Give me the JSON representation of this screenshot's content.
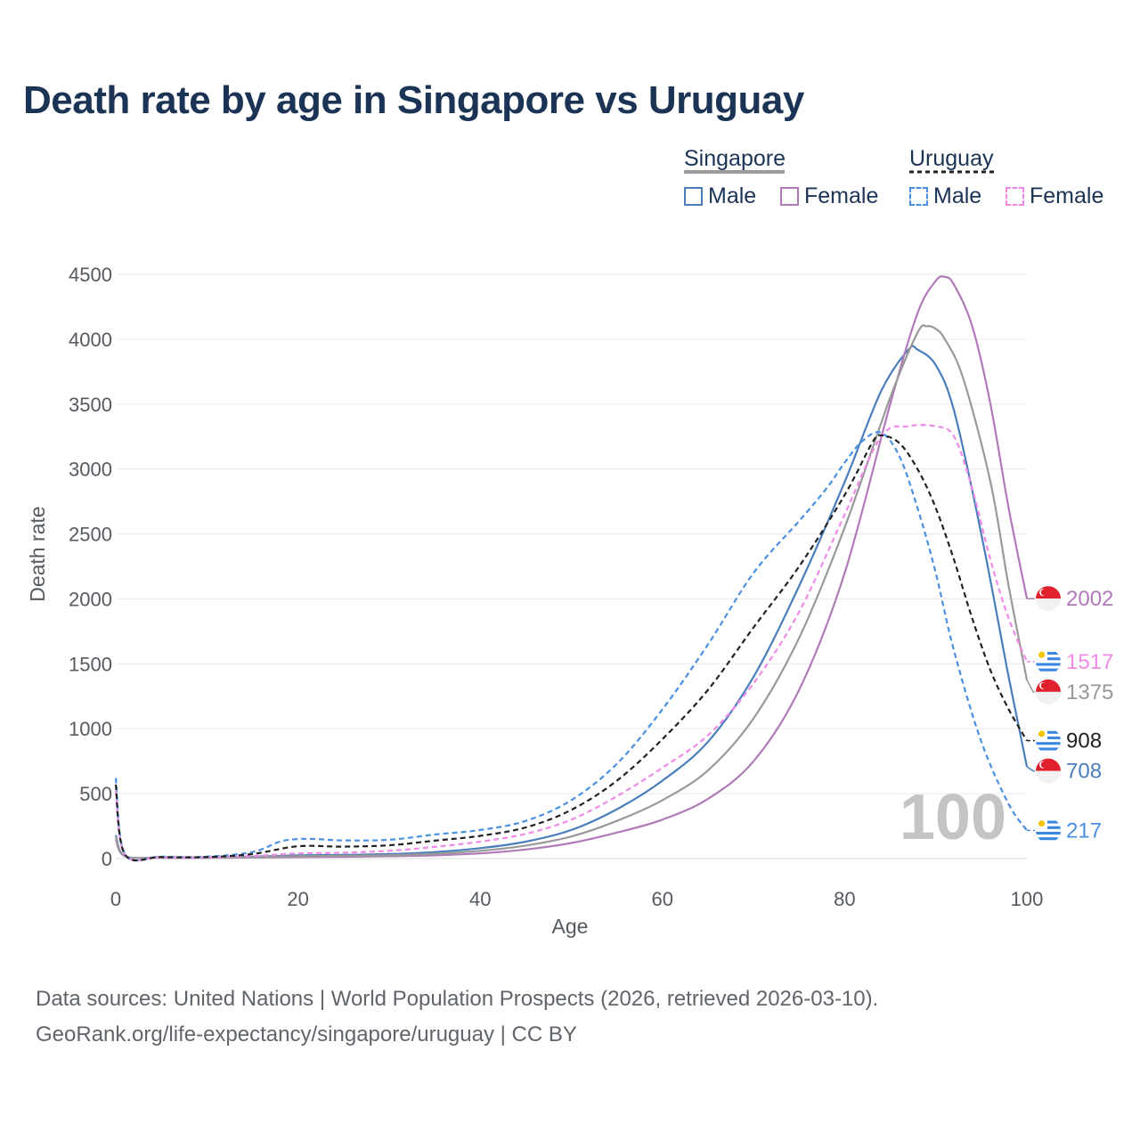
{
  "title": "Death rate by age in Singapore vs Uruguay",
  "legend": {
    "groups": [
      {
        "name": "Singapore",
        "line_color": "#999999",
        "dash": "solid",
        "items": [
          {
            "label": "Male",
            "color": "#4a7ebb"
          },
          {
            "label": "Female",
            "color": "#b07ab8"
          }
        ]
      },
      {
        "name": "Uruguay",
        "line_color": "#222222",
        "dash": "dashed",
        "items": [
          {
            "label": "Male",
            "color": "#4a90e2"
          },
          {
            "label": "Female",
            "color": "#f08ae8"
          }
        ]
      }
    ]
  },
  "watermark": "100",
  "source_line1": "Data sources: United Nations | World Population Prospects (2026, retrieved 2026-03-10).",
  "source_line2": "GeoRank.org/life-expectancy/singapore/uruguay | CC BY",
  "chart_data": {
    "type": "line",
    "title": "Death rate by age in Singapore vs Uruguay",
    "xlabel": "Age",
    "ylabel": "Death rate",
    "xlim": [
      0,
      100
    ],
    "ylim": [
      0,
      4500
    ],
    "xticks": [
      0,
      20,
      40,
      60,
      80,
      100
    ],
    "yticks": [
      0,
      500,
      1000,
      1500,
      2000,
      2500,
      3000,
      3500,
      4000,
      4500
    ],
    "grid": true,
    "series": [
      {
        "name": "Singapore Male",
        "country": "Singapore",
        "sex": "Male",
        "color": "#4a7ebb",
        "dash": "solid",
        "end_label": "708",
        "points": [
          [
            0,
            180
          ],
          [
            1,
            20
          ],
          [
            5,
            8
          ],
          [
            10,
            8
          ],
          [
            15,
            15
          ],
          [
            20,
            25
          ],
          [
            25,
            28
          ],
          [
            30,
            35
          ],
          [
            35,
            50
          ],
          [
            40,
            80
          ],
          [
            45,
            130
          ],
          [
            50,
            220
          ],
          [
            55,
            380
          ],
          [
            60,
            600
          ],
          [
            65,
            900
          ],
          [
            70,
            1400
          ],
          [
            75,
            2100
          ],
          [
            80,
            2900
          ],
          [
            84,
            3600
          ],
          [
            87,
            3920
          ],
          [
            88,
            3920
          ],
          [
            90,
            3800
          ],
          [
            92,
            3450
          ],
          [
            95,
            2500
          ],
          [
            98,
            1400
          ],
          [
            100,
            708
          ]
        ]
      },
      {
        "name": "Singapore Female",
        "country": "Singapore",
        "sex": "Female",
        "color": "#b07ab8",
        "dash": "solid",
        "end_label": "2002",
        "points": [
          [
            0,
            150
          ],
          [
            1,
            18
          ],
          [
            5,
            6
          ],
          [
            10,
            6
          ],
          [
            15,
            8
          ],
          [
            20,
            12
          ],
          [
            25,
            14
          ],
          [
            30,
            18
          ],
          [
            35,
            25
          ],
          [
            40,
            40
          ],
          [
            45,
            70
          ],
          [
            50,
            120
          ],
          [
            55,
            200
          ],
          [
            60,
            300
          ],
          [
            65,
            460
          ],
          [
            70,
            750
          ],
          [
            75,
            1300
          ],
          [
            80,
            2200
          ],
          [
            85,
            3500
          ],
          [
            88,
            4200
          ],
          [
            90,
            4450
          ],
          [
            91,
            4480
          ],
          [
            92,
            4420
          ],
          [
            94,
            4100
          ],
          [
            96,
            3500
          ],
          [
            98,
            2700
          ],
          [
            100,
            2002
          ]
        ]
      },
      {
        "name": "Singapore Total",
        "country": "Singapore",
        "sex": "Total",
        "color": "#999999",
        "dash": "solid",
        "end_label": "1375",
        "points": [
          [
            0,
            165
          ],
          [
            1,
            19
          ],
          [
            5,
            7
          ],
          [
            10,
            7
          ],
          [
            15,
            11
          ],
          [
            20,
            18
          ],
          [
            25,
            21
          ],
          [
            30,
            26
          ],
          [
            35,
            37
          ],
          [
            40,
            60
          ],
          [
            45,
            100
          ],
          [
            50,
            170
          ],
          [
            55,
            290
          ],
          [
            60,
            450
          ],
          [
            65,
            680
          ],
          [
            70,
            1080
          ],
          [
            75,
            1700
          ],
          [
            80,
            2550
          ],
          [
            85,
            3550
          ],
          [
            88,
            4050
          ],
          [
            89,
            4100
          ],
          [
            90,
            4080
          ],
          [
            91,
            4000
          ],
          [
            93,
            3700
          ],
          [
            96,
            2900
          ],
          [
            98,
            2100
          ],
          [
            100,
            1375
          ]
        ]
      },
      {
        "name": "Uruguay Male",
        "country": "Uruguay",
        "sex": "Male",
        "color": "#4a90e2",
        "dash": "dashed",
        "end_label": "217",
        "points": [
          [
            0,
            620
          ],
          [
            1,
            35
          ],
          [
            5,
            15
          ],
          [
            10,
            15
          ],
          [
            15,
            50
          ],
          [
            18,
            130
          ],
          [
            20,
            150
          ],
          [
            22,
            150
          ],
          [
            25,
            140
          ],
          [
            30,
            145
          ],
          [
            35,
            185
          ],
          [
            40,
            220
          ],
          [
            45,
            290
          ],
          [
            50,
            450
          ],
          [
            55,
            730
          ],
          [
            60,
            1150
          ],
          [
            65,
            1650
          ],
          [
            70,
            2200
          ],
          [
            75,
            2600
          ],
          [
            78,
            2850
          ],
          [
            80,
            3050
          ],
          [
            82,
            3220
          ],
          [
            84,
            3280
          ],
          [
            86,
            3100
          ],
          [
            88,
            2700
          ],
          [
            90,
            2200
          ],
          [
            92,
            1600
          ],
          [
            95,
            900
          ],
          [
            98,
            420
          ],
          [
            100,
            217
          ]
        ]
      },
      {
        "name": "Uruguay Female",
        "country": "Uruguay",
        "sex": "Female",
        "color": "#f08ae8",
        "dash": "dashed",
        "end_label": "1517",
        "points": [
          [
            0,
            520
          ],
          [
            1,
            28
          ],
          [
            5,
            10
          ],
          [
            10,
            10
          ],
          [
            15,
            20
          ],
          [
            20,
            40
          ],
          [
            25,
            45
          ],
          [
            30,
            60
          ],
          [
            35,
            90
          ],
          [
            40,
            130
          ],
          [
            45,
            190
          ],
          [
            50,
            300
          ],
          [
            55,
            480
          ],
          [
            60,
            700
          ],
          [
            65,
            950
          ],
          [
            70,
            1350
          ],
          [
            75,
            1900
          ],
          [
            80,
            2650
          ],
          [
            84,
            3250
          ],
          [
            87,
            3330
          ],
          [
            90,
            3330
          ],
          [
            92,
            3250
          ],
          [
            94,
            2850
          ],
          [
            96,
            2300
          ],
          [
            98,
            1850
          ],
          [
            100,
            1517
          ]
        ]
      },
      {
        "name": "Uruguay Total",
        "country": "Uruguay",
        "sex": "Total",
        "color": "#222222",
        "dash": "dashed",
        "end_label": "908",
        "points": [
          [
            0,
            570
          ],
          [
            1,
            32
          ],
          [
            5,
            12
          ],
          [
            10,
            12
          ],
          [
            15,
            35
          ],
          [
            20,
            95
          ],
          [
            25,
            92
          ],
          [
            30,
            102
          ],
          [
            35,
            138
          ],
          [
            40,
            175
          ],
          [
            45,
            240
          ],
          [
            50,
            375
          ],
          [
            55,
            600
          ],
          [
            60,
            920
          ],
          [
            65,
            1300
          ],
          [
            70,
            1780
          ],
          [
            75,
            2250
          ],
          [
            80,
            2800
          ],
          [
            83,
            3200
          ],
          [
            84,
            3260
          ],
          [
            86,
            3200
          ],
          [
            88,
            3000
          ],
          [
            90,
            2700
          ],
          [
            92,
            2300
          ],
          [
            94,
            1850
          ],
          [
            96,
            1450
          ],
          [
            98,
            1150
          ],
          [
            100,
            908
          ]
        ]
      }
    ]
  }
}
